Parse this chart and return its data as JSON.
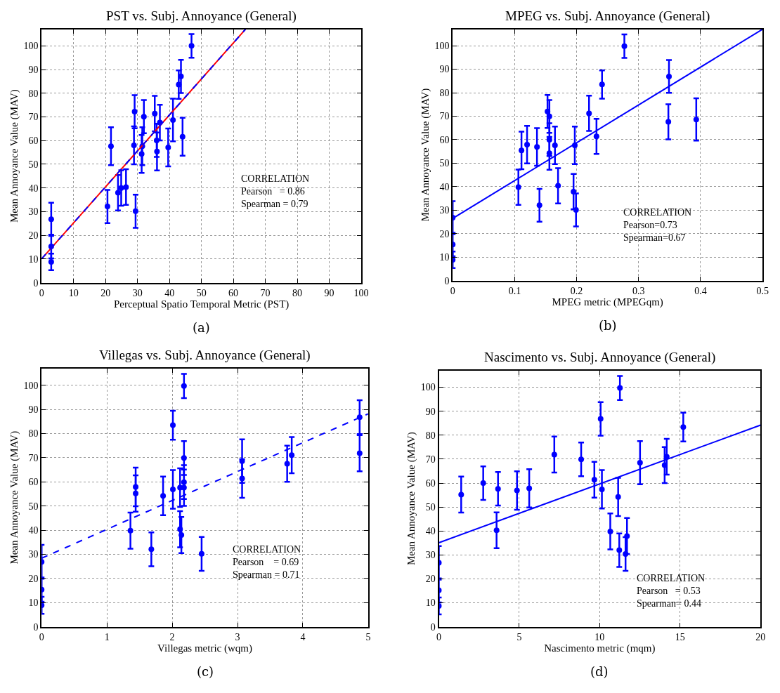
{
  "chart_data": [
    {
      "type": "scatter",
      "title": "PST vs. Subj. Annoyance (General)",
      "xlabel": "Perceptual Spatio Temporal Metric (PST)",
      "ylabel": "Mean Annoyance Value (MAV)",
      "xlim": [
        0,
        100
      ],
      "ylim": [
        0,
        107
      ],
      "xticks": [
        0,
        10,
        20,
        30,
        40,
        50,
        60,
        70,
        80,
        90,
        100
      ],
      "yticks": [
        0,
        10,
        20,
        30,
        40,
        50,
        60,
        70,
        80,
        90,
        100
      ],
      "grid": true,
      "marker": "circle",
      "series": [
        {
          "color": "#0000ff",
          "x": [
            3,
            3,
            3,
            20.6,
            21.7,
            23.9,
            24.9,
            26.4,
            29.1,
            28.9,
            29.4,
            31.3,
            31.5,
            32,
            35.4,
            36,
            36.1,
            37,
            39.6,
            41.1,
            42.9,
            43.6,
            44.1,
            46.9
          ],
          "values": [
            26.8,
            15.3,
            8.8,
            32.2,
            57.6,
            38,
            40,
            40.4,
            72.2,
            58,
            30.2,
            54.4,
            57.6,
            70.1,
            71.4,
            60.1,
            55.4,
            67.6,
            57.1,
            68.7,
            83.6,
            87.1,
            61.6,
            100
          ],
          "errors": [
            7,
            5,
            3.5,
            7,
            8,
            7.5,
            7.5,
            7.5,
            7,
            8,
            7,
            8,
            8,
            7,
            7.5,
            7,
            8,
            7.5,
            8,
            9,
            6,
            7,
            8,
            5
          ]
        },
        {
          "type": "line",
          "color": "#ff0000",
          "marker": "none",
          "line_style": "solid",
          "x": [
            0,
            63.8
          ],
          "values": [
            10.1,
            107
          ]
        },
        {
          "type": "line",
          "color": "#0000ff",
          "marker": "none",
          "line_style": "dashed",
          "x": [
            0,
            63.8
          ],
          "values": [
            10.1,
            107
          ]
        }
      ],
      "annotations": [
        "CORRELATION\nPearson   = 0.86\nSpearman = 0.79",
        "(a)"
      ]
    },
    {
      "type": "scatter",
      "title": "MPEG vs. Subj. Annoyance (General)",
      "xlabel": "MPEG metric (MPEGqm)",
      "ylabel": "Mean Annoyance Value (MAV)",
      "xlim": [
        0,
        0.5
      ],
      "ylim": [
        0,
        107
      ],
      "xticks": [
        0,
        0.1,
        0.2,
        0.3,
        0.4,
        0.5
      ],
      "yticks": [
        0,
        10,
        20,
        30,
        40,
        50,
        60,
        70,
        80,
        90,
        100
      ],
      "grid": true,
      "marker": "circle",
      "series": [
        {
          "color": "#0000ff",
          "x": [
            0,
            0,
            0,
            0.106,
            0.111,
            0.12,
            0.136,
            0.14,
            0.153,
            0.156,
            0.156,
            0.156,
            0.165,
            0.17,
            0.195,
            0.197,
            0.199,
            0.22,
            0.232,
            0.241,
            0.277,
            0.349,
            0.348,
            0.393
          ],
          "values": [
            26.8,
            15.4,
            8.9,
            39.8,
            55.4,
            57.9,
            56.9,
            32.1,
            72,
            69.9,
            60,
            54.2,
            57.6,
            40.4,
            37.9,
            57.6,
            30.1,
            71.2,
            61.4,
            83.5,
            99.8,
            86.9,
            67.6,
            68.6
          ],
          "errors": [
            7,
            5,
            3.5,
            7.5,
            8,
            8,
            8,
            7,
            7,
            7,
            7,
            7,
            8,
            7.5,
            7.5,
            8,
            7,
            7.5,
            7.5,
            6,
            5,
            7,
            7.5,
            9
          ]
        },
        {
          "type": "line",
          "color": "#0000ff",
          "marker": "none",
          "line_style": "solid",
          "x": [
            0,
            0.5
          ],
          "values": [
            26.5,
            107
          ]
        }
      ],
      "annotations": [
        "CORRELATION\nPearson=0.73\nSpearman=0.67",
        "(b)"
      ]
    },
    {
      "type": "scatter",
      "title": "Villegas vs. Subj. Annoyance (General)",
      "xlabel": "Villegas metric (wqm)",
      "ylabel": "Mean Annoyance Value (MAV)",
      "xlim": [
        0,
        5
      ],
      "ylim": [
        0,
        107
      ],
      "xticks": [
        0,
        1,
        2,
        3,
        4,
        5
      ],
      "yticks": [
        0,
        10,
        20,
        30,
        40,
        50,
        60,
        70,
        80,
        90,
        100
      ],
      "grid": true,
      "marker": "circle",
      "series": [
        {
          "color": "#0000ff",
          "x": [
            0,
            0,
            0,
            1.36,
            1.44,
            1.44,
            1.68,
            1.86,
            2.01,
            2.01,
            2.12,
            2.14,
            2.12,
            2.18,
            2.18,
            2.18,
            2.18,
            2.45,
            3.07,
            3.07,
            3.76,
            3.83,
            4.87,
            4.87
          ],
          "values": [
            26.9,
            15.4,
            8.9,
            39.8,
            57.9,
            55.2,
            32.1,
            54.2,
            83.5,
            56.9,
            40.4,
            38,
            57.6,
            99.7,
            69.9,
            59.9,
            57.6,
            30.2,
            68.6,
            61.4,
            67.5,
            71.1,
            86.8,
            71.9
          ],
          "errors": [
            7,
            5,
            3.5,
            7.5,
            8,
            7.5,
            7,
            8,
            6,
            8,
            7.5,
            7.5,
            8,
            5,
            7,
            7,
            7.5,
            7,
            9,
            8,
            7.5,
            7.5,
            7,
            7.5
          ]
        },
        {
          "type": "line",
          "color": "#0000ff",
          "marker": "none",
          "line_style": "dashed",
          "x": [
            0,
            5
          ],
          "values": [
            28.4,
            88.2
          ]
        }
      ],
      "annotations": [
        "CORRELATION\nPearson    = 0.69\nSpearman = 0.71",
        "(c)"
      ]
    },
    {
      "type": "scatter",
      "title": "Nascimento vs. Subj. Annoyance (General)",
      "xlabel": "Nascimento metric (mqm)",
      "ylabel": "Mean Annoyance Value (MAV)",
      "xlim": [
        0,
        20
      ],
      "ylim": [
        0,
        107
      ],
      "xticks": [
        0,
        5,
        10,
        15,
        20
      ],
      "yticks": [
        0,
        10,
        20,
        30,
        40,
        50,
        60,
        70,
        80,
        90,
        100
      ],
      "grid": true,
      "marker": "circle",
      "series": [
        {
          "color": "#0000ff",
          "x": [
            0,
            0,
            0,
            1.39,
            2.76,
            3.68,
            3.59,
            4.86,
            5.62,
            7.18,
            8.85,
            9.67,
            10.06,
            10.14,
            10.66,
            11.15,
            11.22,
            11.26,
            11.61,
            11.7,
            12.51,
            14.04,
            14.17,
            15.2
          ],
          "values": [
            26.7,
            15.2,
            8.7,
            55.2,
            60,
            57.6,
            40.3,
            56.9,
            57.8,
            71.9,
            69.9,
            61.4,
            86.8,
            57.4,
            39.8,
            54.2,
            32,
            99.7,
            30.4,
            37.9,
            68.5,
            67.5,
            71,
            83.4
          ],
          "errors": [
            7,
            5,
            3.5,
            7.5,
            7,
            7,
            7.5,
            8,
            8,
            7.5,
            7,
            7.5,
            7,
            8,
            7.5,
            8,
            7,
            5,
            7,
            7.5,
            9,
            7.5,
            7.5,
            6
          ]
        },
        {
          "type": "line",
          "color": "#0000ff",
          "marker": "none",
          "line_style": "solid",
          "x": [
            0,
            20
          ],
          "values": [
            35.1,
            84.2
          ]
        }
      ],
      "annotations": [
        "CORRELATION\nPearson   = 0.53\nSpearman= 0.44",
        "(d)"
      ]
    }
  ]
}
